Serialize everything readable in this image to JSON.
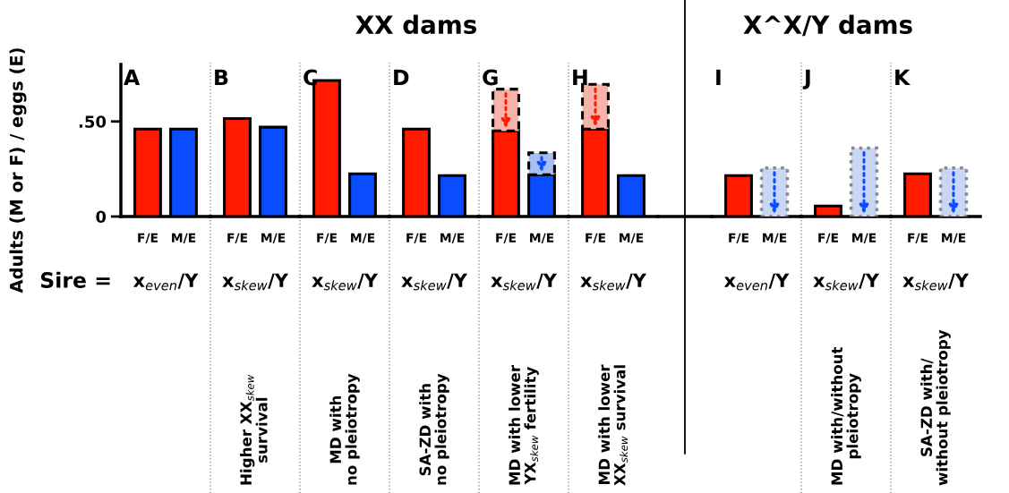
{
  "chart_data": [
    {
      "type": "bar",
      "title": "A",
      "ylabel": "Adults (M or F) / eggs (E)",
      "xlabel": "x$_{even}$/Y",
      "annotations": [
        "Sire ="
      ],
      "categories": [
        "F/E",
        "M/E"
      ],
      "ylim": [
        0,
        0.8
      ],
      "yticks": [
        0,
        {
          "value": 0.5,
          "label": ".50"
        }
      ],
      "series": [
        {
          "colors": [
            "#ff1a00",
            "#0a4cff"
          ],
          "values": [
            0.46,
            0.46
          ]
        }
      ]
    },
    {
      "type": "bar",
      "title": "B",
      "xlabel": "x$_{skew}$/Y",
      "annotations": [
        "Higher XX$_{skew}$\nsurvival"
      ],
      "categories": [
        "F/E",
        "M/E"
      ],
      "ylim": [
        0,
        0.8
      ],
      "tick_labels": "x",
      "series": [
        {
          "colors": [
            "#ff1a00",
            "#0a4cff"
          ],
          "values": [
            0.515,
            0.47
          ]
        }
      ]
    },
    {
      "type": "bar",
      "title": "C",
      "xlabel": "x$_{skew}$/Y",
      "annotations": [
        "MD with\nno pleiotropy"
      ],
      "categories": [
        "F/E",
        "M/E"
      ],
      "ylim": [
        0,
        0.8
      ],
      "tick_labels": "x",
      "series": [
        {
          "colors": [
            "#ff1a00",
            "#0a4cff"
          ],
          "values": [
            0.715,
            0.225
          ]
        }
      ]
    },
    {
      "type": "bar",
      "title": "D",
      "subtitle": "XX dams",
      "xlabel": "x$_{skew}$/Y",
      "annotations": [
        "SA-ZD with\nno pleiotropy"
      ],
      "categories": [
        "F/E",
        "M/E"
      ],
      "ylim": [
        0,
        0.8
      ],
      "tick_labels": "x",
      "series": [
        {
          "colors": [
            "#ff1a00",
            "#0a4cff"
          ],
          "values": [
            0.46,
            0.215
          ]
        }
      ]
    },
    {
      "type": "bar",
      "title": "G",
      "xlabel": "x$_{skew}$/Y",
      "annotations": [
        "MD with lower\nYX$_{skew}$ fertility"
      ],
      "categories": [
        "F/E",
        "M/E"
      ],
      "ylim": [
        0,
        0.8
      ],
      "tick_labels": "x",
      "series": [
        {
          "colors": [
            "#ff1a00",
            "#0a4cff"
          ],
          "values": [
            0.45,
            0.22
          ]
        },
        {
          "colors": [
            "#f7b3aa",
            "#a9bff2"
          ],
          "values": [
            0.22,
            0.115
          ],
          "line_style": "dashed"
        }
      ],
      "stacked": true
    },
    {
      "type": "bar",
      "title": "H",
      "xlabel": "x$_{skew}$/Y",
      "annotations": [
        "MD with lower\nXX$_{skew}$ survival"
      ],
      "categories": [
        "F/E",
        "M/E"
      ],
      "ylim": [
        0,
        0.8
      ],
      "tick_labels": "x",
      "series": [
        {
          "colors": [
            "#ff1a00",
            "#0a4cff"
          ],
          "values": [
            0.46,
            0.215
          ]
        },
        {
          "colors": [
            "#f7b3aa",
            null
          ],
          "values": [
            0.235,
            null
          ],
          "line_style": "dashed"
        }
      ],
      "stacked": true
    },
    {
      "type": "bar",
      "title": "I",
      "xlabel": "x$_{even}$/Y",
      "categories": [
        "F/E",
        "M/E"
      ],
      "ylim": [
        0,
        0.8
      ],
      "tick_labels": "x",
      "series": [
        {
          "colors": [
            "#ff1a00",
            null
          ],
          "values": [
            0.215,
            null
          ]
        },
        {
          "colors": [
            null,
            "#c9d6f4"
          ],
          "values": [
            null,
            0.255
          ],
          "line_style": "dotted"
        }
      ],
      "stacked": true
    },
    {
      "type": "bar",
      "title": "J",
      "subtitle": "X^X/Y dams",
      "xlabel": "x$_{skew}$/Y",
      "annotations": [
        "MD with/without\npleiotropy"
      ],
      "categories": [
        "F/E",
        "M/E"
      ],
      "ylim": [
        0,
        0.8
      ],
      "tick_labels": "x",
      "series": [
        {
          "colors": [
            "#ff1a00",
            null
          ],
          "values": [
            0.055,
            null
          ]
        },
        {
          "colors": [
            null,
            "#c9d6f4"
          ],
          "values": [
            null,
            0.36
          ],
          "line_style": "dotted"
        }
      ],
      "stacked": true
    },
    {
      "type": "bar",
      "title": "K",
      "xlabel": "x$_{skew}$/Y",
      "annotations": [
        "SA-ZD with/\nwithout pleiotropy"
      ],
      "categories": [
        "F/E",
        "M/E"
      ],
      "ylim": [
        0,
        0.8
      ],
      "tick_labels": "x",
      "series": [
        {
          "colors": [
            "#ff1a00",
            null
          ],
          "values": [
            0.225,
            null
          ]
        },
        {
          "colors": [
            null,
            "#c9d6f4"
          ],
          "values": [
            null,
            0.255
          ],
          "line_style": "dotted"
        }
      ],
      "stacked": true
    }
  ]
}
